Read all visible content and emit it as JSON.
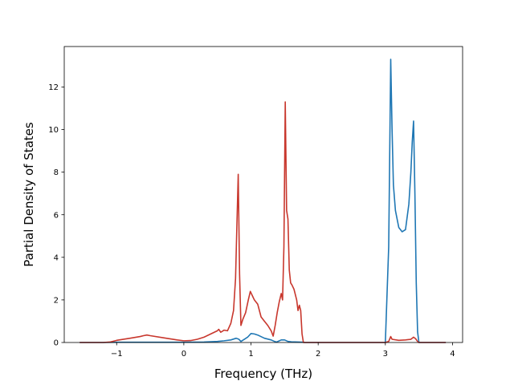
{
  "chart_data": {
    "type": "line",
    "title": "",
    "xlabel": "Frequency (THz)",
    "ylabel": "Partial Density of States",
    "xlim": [
      -1.78,
      4.15
    ],
    "ylim": [
      0,
      13.9
    ],
    "xticks": [
      -1,
      0,
      1,
      2,
      3,
      4
    ],
    "xtick_labels": [
      "−1",
      "0",
      "1",
      "2",
      "3",
      "4"
    ],
    "yticks": [
      0,
      2,
      4,
      6,
      8,
      10,
      12
    ],
    "ytick_labels": [
      "0",
      "2",
      "4",
      "6",
      "8",
      "10",
      "12"
    ],
    "grid": false,
    "legend": "none",
    "series": [
      {
        "color": "#1f77b4",
        "x": [
          -1.55,
          -1.2,
          -1.0,
          -0.5,
          0.0,
          0.3,
          0.5,
          0.6,
          0.7,
          0.78,
          0.82,
          0.85,
          0.9,
          0.95,
          1.0,
          1.05,
          1.1,
          1.2,
          1.3,
          1.35,
          1.38,
          1.45,
          1.5,
          1.55,
          1.6,
          1.7,
          1.78,
          1.8,
          2.0,
          2.5,
          3.0,
          3.05,
          3.08,
          3.1,
          3.12,
          3.15,
          3.2,
          3.25,
          3.3,
          3.35,
          3.38,
          3.4,
          3.42,
          3.44,
          3.46,
          3.48,
          3.5,
          3.7,
          3.9
        ],
        "values": [
          0,
          0,
          0.01,
          0.01,
          0.01,
          0.02,
          0.05,
          0.08,
          0.12,
          0.2,
          0.15,
          0.05,
          0.15,
          0.25,
          0.42,
          0.4,
          0.35,
          0.2,
          0.12,
          0.05,
          0.02,
          0.12,
          0.12,
          0.05,
          0.03,
          0.02,
          0.01,
          0,
          0,
          0,
          0,
          4.5,
          13.3,
          10.0,
          7.4,
          6.2,
          5.4,
          5.2,
          5.3,
          6.5,
          8.0,
          9.4,
          10.4,
          7.0,
          2.8,
          0.5,
          0,
          0,
          0
        ]
      },
      {
        "color": "#c8372d",
        "x": [
          -1.55,
          -1.2,
          -1.1,
          -1.0,
          -0.8,
          -0.65,
          -0.6,
          -0.55,
          -0.5,
          -0.3,
          -0.1,
          0.0,
          0.1,
          0.2,
          0.3,
          0.4,
          0.5,
          0.52,
          0.55,
          0.6,
          0.65,
          0.7,
          0.74,
          0.77,
          0.79,
          0.81,
          0.83,
          0.85,
          0.88,
          0.92,
          0.96,
          0.99,
          1.02,
          1.05,
          1.1,
          1.15,
          1.2,
          1.25,
          1.3,
          1.33,
          1.36,
          1.39,
          1.42,
          1.45,
          1.47,
          1.49,
          1.51,
          1.53,
          1.55,
          1.57,
          1.59,
          1.61,
          1.64,
          1.68,
          1.7,
          1.72,
          1.74,
          1.76,
          1.78,
          2.0,
          2.5,
          3.0,
          3.05,
          3.08,
          3.1,
          3.2,
          3.3,
          3.38,
          3.42,
          3.45,
          3.48,
          3.5,
          3.7,
          3.9
        ],
        "values": [
          0,
          0,
          0.02,
          0.1,
          0.2,
          0.28,
          0.32,
          0.35,
          0.32,
          0.22,
          0.12,
          0.08,
          0.09,
          0.15,
          0.25,
          0.4,
          0.55,
          0.62,
          0.48,
          0.58,
          0.55,
          0.9,
          1.5,
          3.0,
          5.5,
          7.9,
          3.2,
          0.8,
          1.1,
          1.4,
          2.0,
          2.4,
          2.2,
          2.0,
          1.8,
          1.2,
          1.0,
          0.8,
          0.55,
          0.3,
          0.8,
          1.4,
          1.9,
          2.3,
          2.0,
          4.5,
          11.3,
          6.2,
          5.8,
          3.4,
          2.8,
          2.7,
          2.5,
          2.0,
          1.5,
          1.75,
          1.5,
          0.4,
          0,
          0,
          0,
          0,
          0.05,
          0.28,
          0.15,
          0.1,
          0.12,
          0.15,
          0.25,
          0.18,
          0.05,
          0,
          0,
          0
        ]
      }
    ]
  }
}
